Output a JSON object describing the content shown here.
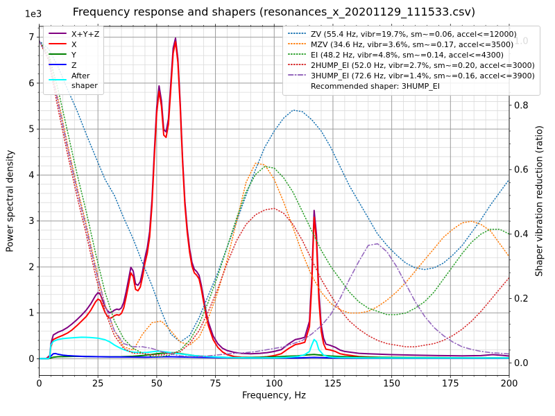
{
  "chart_data": {
    "type": "line",
    "title": "Frequency response and shapers (resonances_x_20201129_111533.csv)",
    "xlabel": "Frequency, Hz",
    "ylabel_left": "Power spectral density",
    "ylabel_right": "Shaper vibration reduction (ratio)",
    "y_left_multiplier": "1e3",
    "xlim": [
      0,
      200
    ],
    "ylim_left": [
      -362,
      7236
    ],
    "ylim_right": [
      -0.0388,
      1.045
    ],
    "x_major_ticks": [
      0,
      25,
      50,
      75,
      100,
      125,
      150,
      175,
      200
    ],
    "x_tick_labels": [
      "0",
      "25",
      "50",
      "75",
      "100",
      "125",
      "150",
      "175",
      "200"
    ],
    "x_minor_step": 5,
    "y_left_major_ticks": [
      0,
      1000,
      2000,
      3000,
      4000,
      5000,
      6000,
      7000
    ],
    "y_left_tick_labels": [
      "0",
      "1",
      "2",
      "3",
      "4",
      "5",
      "6",
      "7"
    ],
    "y_left_minor_step": 200,
    "y_right_major_ticks": [
      0,
      0.2,
      0.4,
      0.6,
      0.8,
      1.0
    ],
    "y_right_tick_labels": [
      "0.0",
      "0.2",
      "0.4",
      "0.6",
      "0.8",
      "1.0"
    ],
    "y_right_minor_step": 0.04,
    "grid": {
      "major_color": "#9b9b9b",
      "minor_color": "#dadada"
    },
    "spine_color": "#1a1a1a",
    "recommended_shaper_text": "Recommended shaper: 3HUMP_EI",
    "psd_series": [
      {
        "name": "X+Y+Z",
        "color": "#800080",
        "style": "solid",
        "axis": "left",
        "x": [
          0,
          3,
          4.5,
          5,
          6,
          8,
          10,
          12,
          14,
          16,
          18,
          20,
          22,
          24,
          25,
          26,
          27,
          28,
          29,
          30,
          31,
          32,
          33,
          34,
          35,
          36,
          37,
          38,
          39,
          40,
          41,
          42,
          43,
          44,
          45,
          46,
          47,
          48,
          49,
          50,
          51,
          52,
          53,
          54,
          55,
          56,
          57,
          58,
          59,
          60,
          61,
          62,
          63,
          64,
          65,
          66,
          67,
          68,
          69,
          70,
          71,
          72,
          74,
          76,
          78,
          80,
          83,
          86,
          90,
          94,
          97,
          100,
          103,
          106,
          109,
          111,
          113,
          115,
          116,
          117,
          118,
          119,
          120,
          121,
          122,
          124,
          126,
          128,
          130,
          133,
          136,
          140,
          145,
          150,
          160,
          170,
          180,
          188,
          193,
          197,
          200
        ],
        "y": [
          8,
          8,
          70,
          330,
          520,
          580,
          620,
          680,
          760,
          850,
          950,
          1060,
          1200,
          1380,
          1440,
          1400,
          1270,
          1140,
          1050,
          1000,
          1020,
          1060,
          1080,
          1070,
          1110,
          1230,
          1460,
          1720,
          1990,
          1910,
          1630,
          1600,
          1680,
          1910,
          2200,
          2420,
          2770,
          3470,
          4520,
          5470,
          5940,
          5620,
          4990,
          4940,
          5220,
          6000,
          6760,
          6980,
          6530,
          5560,
          4380,
          3430,
          2830,
          2400,
          2100,
          1950,
          1900,
          1820,
          1600,
          1310,
          1030,
          800,
          500,
          330,
          230,
          180,
          140,
          120,
          110,
          120,
          135,
          160,
          200,
          320,
          420,
          440,
          470,
          820,
          1750,
          3230,
          2700,
          1450,
          730,
          450,
          320,
          290,
          250,
          190,
          160,
          140,
          120,
          110,
          100,
          90,
          80,
          70,
          65,
          70,
          90,
          75,
          60
        ]
      },
      {
        "name": "X",
        "color": "#ff0000",
        "style": "solid",
        "axis": "left",
        "x": [
          0,
          3,
          4.5,
          5,
          6,
          8,
          10,
          12,
          14,
          16,
          18,
          20,
          22,
          24,
          25,
          26,
          27,
          28,
          29,
          30,
          31,
          32,
          33,
          34,
          35,
          36,
          37,
          38,
          39,
          40,
          41,
          42,
          43,
          44,
          45,
          46,
          47,
          48,
          49,
          50,
          51,
          52,
          53,
          54,
          55,
          56,
          57,
          58,
          59,
          60,
          61,
          62,
          63,
          64,
          65,
          66,
          67,
          68,
          69,
          70,
          71,
          72,
          74,
          76,
          78,
          80,
          83,
          86,
          90,
          94,
          97,
          100,
          103,
          106,
          109,
          111,
          113,
          115,
          116,
          117,
          118,
          119,
          120,
          121,
          122,
          124,
          126,
          128,
          130,
          133,
          136,
          140,
          145,
          150,
          160,
          170,
          180,
          188,
          193,
          197,
          200
        ],
        "y": [
          5,
          5,
          40,
          260,
          420,
          470,
          510,
          560,
          630,
          720,
          820,
          920,
          1060,
          1240,
          1300,
          1270,
          1140,
          1010,
          930,
          880,
          900,
          940,
          960,
          950,
          990,
          1110,
          1340,
          1600,
          1870,
          1790,
          1510,
          1480,
          1560,
          1790,
          2080,
          2300,
          2650,
          3350,
          4400,
          5350,
          5820,
          5500,
          4870,
          4820,
          5100,
          5880,
          6650,
          6900,
          6450,
          5480,
          4300,
          3350,
          2750,
          2320,
          2020,
          1870,
          1820,
          1740,
          1520,
          1230,
          950,
          720,
          420,
          250,
          150,
          90,
          50,
          35,
          30,
          35,
          45,
          70,
          110,
          220,
          310,
          330,
          360,
          700,
          1600,
          3080,
          2550,
          1300,
          600,
          330,
          210,
          190,
          160,
          110,
          90,
          70,
          50,
          40,
          30,
          25,
          22,
          20,
          20,
          20,
          22,
          20,
          18
        ]
      },
      {
        "name": "Y",
        "color": "#008000",
        "style": "solid",
        "axis": "left",
        "x": [
          0,
          4,
          5,
          6,
          8,
          12,
          16,
          20,
          25,
          30,
          35,
          40,
          45,
          48,
          50,
          53,
          56,
          58,
          60,
          63,
          66,
          70,
          75,
          80,
          85,
          90,
          95,
          100,
          105,
          110,
          114,
          117,
          120,
          124,
          128,
          135,
          140,
          150,
          160,
          170,
          180,
          190,
          200
        ],
        "y": [
          3,
          3,
          20,
          35,
          45,
          50,
          55,
          50,
          45,
          42,
          45,
          55,
          75,
          95,
          110,
          125,
          135,
          130,
          115,
          90,
          70,
          55,
          40,
          30,
          28,
          30,
          35,
          42,
          55,
          65,
          85,
          95,
          80,
          60,
          48,
          40,
          35,
          30,
          28,
          25,
          22,
          20,
          20
        ]
      },
      {
        "name": "Z",
        "color": "#0000ff",
        "style": "solid",
        "axis": "left",
        "x": [
          0,
          4,
          5,
          6,
          7,
          8,
          10,
          12,
          15,
          20,
          25,
          30,
          35,
          40,
          45,
          50,
          55,
          60,
          70,
          80,
          90,
          100,
          110,
          117,
          125,
          140,
          160,
          180,
          200
        ],
        "y": [
          3,
          3,
          60,
          110,
          115,
          100,
          80,
          70,
          60,
          50,
          45,
          42,
          40,
          38,
          35,
          40,
          45,
          40,
          30,
          25,
          20,
          18,
          20,
          30,
          18,
          15,
          15,
          15,
          15
        ]
      },
      {
        "name": "After shaper",
        "color": "#00ffff",
        "style": "solid",
        "axis": "left",
        "x": [
          0,
          4,
          4.5,
          5,
          6,
          8,
          10,
          12,
          15,
          18,
          20,
          22,
          25,
          28,
          30,
          32,
          34,
          36,
          38,
          40,
          43,
          46,
          49,
          51,
          54,
          57,
          60,
          63,
          66,
          70,
          74,
          78,
          82,
          86,
          90,
          95,
          100,
          105,
          110,
          113,
          115,
          116,
          117,
          118,
          119,
          121,
          123,
          125,
          128,
          132,
          140,
          150,
          160,
          180,
          200
        ],
        "y": [
          3,
          3,
          30,
          300,
          380,
          420,
          440,
          450,
          460,
          470,
          468,
          462,
          450,
          415,
          370,
          300,
          245,
          200,
          165,
          145,
          132,
          140,
          158,
          168,
          150,
          128,
          108,
          88,
          70,
          55,
          44,
          35,
          28,
          23,
          20,
          20,
          22,
          30,
          48,
          90,
          160,
          300,
          420,
          370,
          200,
          80,
          45,
          35,
          28,
          24,
          20,
          20,
          18,
          18,
          18
        ]
      }
    ],
    "shaper_x": [
      0,
      4,
      8,
      12,
      16,
      20,
      24,
      28,
      32,
      36,
      40,
      44,
      48,
      52,
      56,
      60,
      64,
      68,
      72,
      76,
      80,
      84,
      88,
      92,
      96,
      100,
      104,
      108,
      112,
      116,
      120,
      124,
      128,
      132,
      136,
      140,
      144,
      148,
      152,
      156,
      160,
      164,
      168,
      172,
      176,
      180,
      184,
      188,
      192,
      196,
      200
    ],
    "shaper_series": [
      {
        "name": "ZV",
        "label": "ZV (55.4 Hz, vibr=19.7%, sm~=0.06, accel<=12000)",
        "color": "#1f77b4",
        "style": "dotted",
        "axis": "right",
        "y": [
          1.0,
          0.975,
          0.92,
          0.85,
          0.785,
          0.71,
          0.64,
          0.57,
          0.52,
          0.45,
          0.385,
          0.31,
          0.24,
          0.16,
          0.09,
          0.065,
          0.085,
          0.14,
          0.21,
          0.28,
          0.36,
          0.44,
          0.52,
          0.6,
          0.67,
          0.72,
          0.76,
          0.785,
          0.78,
          0.755,
          0.72,
          0.67,
          0.61,
          0.55,
          0.5,
          0.45,
          0.4,
          0.365,
          0.335,
          0.31,
          0.295,
          0.29,
          0.295,
          0.31,
          0.335,
          0.365,
          0.405,
          0.445,
          0.49,
          0.53,
          0.57
        ]
      },
      {
        "name": "MZV",
        "label": "MZV (34.6 Hz, vibr=3.6%, sm~=0.17, accel<=3500)",
        "color": "#ff7f0e",
        "style": "dotted",
        "axis": "right",
        "y": [
          1.0,
          0.95,
          0.82,
          0.68,
          0.55,
          0.43,
          0.3,
          0.18,
          0.1,
          0.05,
          0.04,
          0.09,
          0.125,
          0.13,
          0.1,
          0.065,
          0.055,
          0.08,
          0.14,
          0.22,
          0.32,
          0.44,
          0.56,
          0.62,
          0.615,
          0.57,
          0.5,
          0.42,
          0.34,
          0.27,
          0.22,
          0.185,
          0.165,
          0.155,
          0.155,
          0.16,
          0.175,
          0.195,
          0.22,
          0.25,
          0.285,
          0.32,
          0.355,
          0.39,
          0.415,
          0.435,
          0.44,
          0.43,
          0.41,
          0.37,
          0.33
        ]
      },
      {
        "name": "EI",
        "label": "EI (48.2 Hz, vibr=4.8%, sm~=0.14, accel<=4300)",
        "color": "#2ca02c",
        "style": "dotted",
        "axis": "right",
        "y": [
          1.0,
          0.96,
          0.85,
          0.72,
          0.59,
          0.47,
          0.34,
          0.22,
          0.13,
          0.075,
          0.045,
          0.03,
          0.02,
          0.02,
          0.025,
          0.04,
          0.07,
          0.12,
          0.19,
          0.27,
          0.36,
          0.45,
          0.53,
          0.585,
          0.61,
          0.605,
          0.575,
          0.53,
          0.47,
          0.41,
          0.35,
          0.3,
          0.26,
          0.22,
          0.19,
          0.17,
          0.16,
          0.15,
          0.15,
          0.155,
          0.17,
          0.19,
          0.22,
          0.26,
          0.3,
          0.34,
          0.375,
          0.4,
          0.415,
          0.415,
          0.4
        ]
      },
      {
        "name": "2HUMP_EI",
        "label": "2HUMP_EI (52.0 Hz, vibr=2.7%, sm~=0.20, accel<=3000)",
        "color": "#d62728",
        "style": "dotted",
        "axis": "right",
        "y": [
          1.0,
          0.94,
          0.79,
          0.65,
          0.52,
          0.4,
          0.27,
          0.16,
          0.085,
          0.045,
          0.03,
          0.03,
          0.025,
          0.025,
          0.03,
          0.035,
          0.06,
          0.1,
          0.16,
          0.23,
          0.31,
          0.38,
          0.43,
          0.46,
          0.475,
          0.48,
          0.465,
          0.43,
          0.38,
          0.32,
          0.26,
          0.21,
          0.165,
          0.13,
          0.105,
          0.085,
          0.07,
          0.06,
          0.055,
          0.05,
          0.05,
          0.055,
          0.06,
          0.07,
          0.085,
          0.105,
          0.13,
          0.16,
          0.195,
          0.23,
          0.265
        ]
      },
      {
        "name": "3HUMP_EI",
        "label": "3HUMP_EI (72.6 Hz, vibr=1.4%, sm~=0.16, accel<=3900)",
        "color": "#9467bd",
        "style": "dashdot",
        "axis": "right",
        "y": [
          1.0,
          0.945,
          0.81,
          0.67,
          0.54,
          0.42,
          0.29,
          0.18,
          0.1,
          0.06,
          0.05,
          0.05,
          0.045,
          0.035,
          0.028,
          0.022,
          0.02,
          0.02,
          0.022,
          0.025,
          0.028,
          0.03,
          0.032,
          0.035,
          0.04,
          0.045,
          0.05,
          0.06,
          0.07,
          0.09,
          0.115,
          0.15,
          0.2,
          0.26,
          0.315,
          0.365,
          0.37,
          0.345,
          0.3,
          0.245,
          0.19,
          0.145,
          0.11,
          0.085,
          0.065,
          0.05,
          0.042,
          0.036,
          0.032,
          0.03,
          0.028
        ]
      }
    ],
    "legend_left": {
      "entries": [
        {
          "label": "X+Y+Z",
          "color": "#800080",
          "style": "solid"
        },
        {
          "label": "X",
          "color": "#ff0000",
          "style": "solid"
        },
        {
          "label": "Y",
          "color": "#008000",
          "style": "solid"
        },
        {
          "label": "Z",
          "color": "#0000ff",
          "style": "solid"
        },
        {
          "label": "After shaper",
          "color": "#00ffff",
          "style": "solid"
        }
      ]
    },
    "legend_right": {
      "entries": [
        {
          "label": "ZV (55.4 Hz, vibr=19.7%, sm~=0.06, accel<=12000)",
          "color": "#1f77b4",
          "style": "dotted"
        },
        {
          "label": "MZV (34.6 Hz, vibr=3.6%, sm~=0.17, accel<=3500)",
          "color": "#ff7f0e",
          "style": "dotted"
        },
        {
          "label": "EI (48.2 Hz, vibr=4.8%, sm~=0.14, accel<=4300)",
          "color": "#2ca02c",
          "style": "dotted"
        },
        {
          "label": "2HUMP_EI (52.0 Hz, vibr=2.7%, sm~=0.20, accel<=3000)",
          "color": "#d62728",
          "style": "dotted"
        },
        {
          "label": "3HUMP_EI (72.6 Hz, vibr=1.4%, sm~=0.16, accel<=3900)",
          "color": "#9467bd",
          "style": "dashdot"
        }
      ],
      "footer": "Recommended shaper: 3HUMP_EI"
    }
  }
}
